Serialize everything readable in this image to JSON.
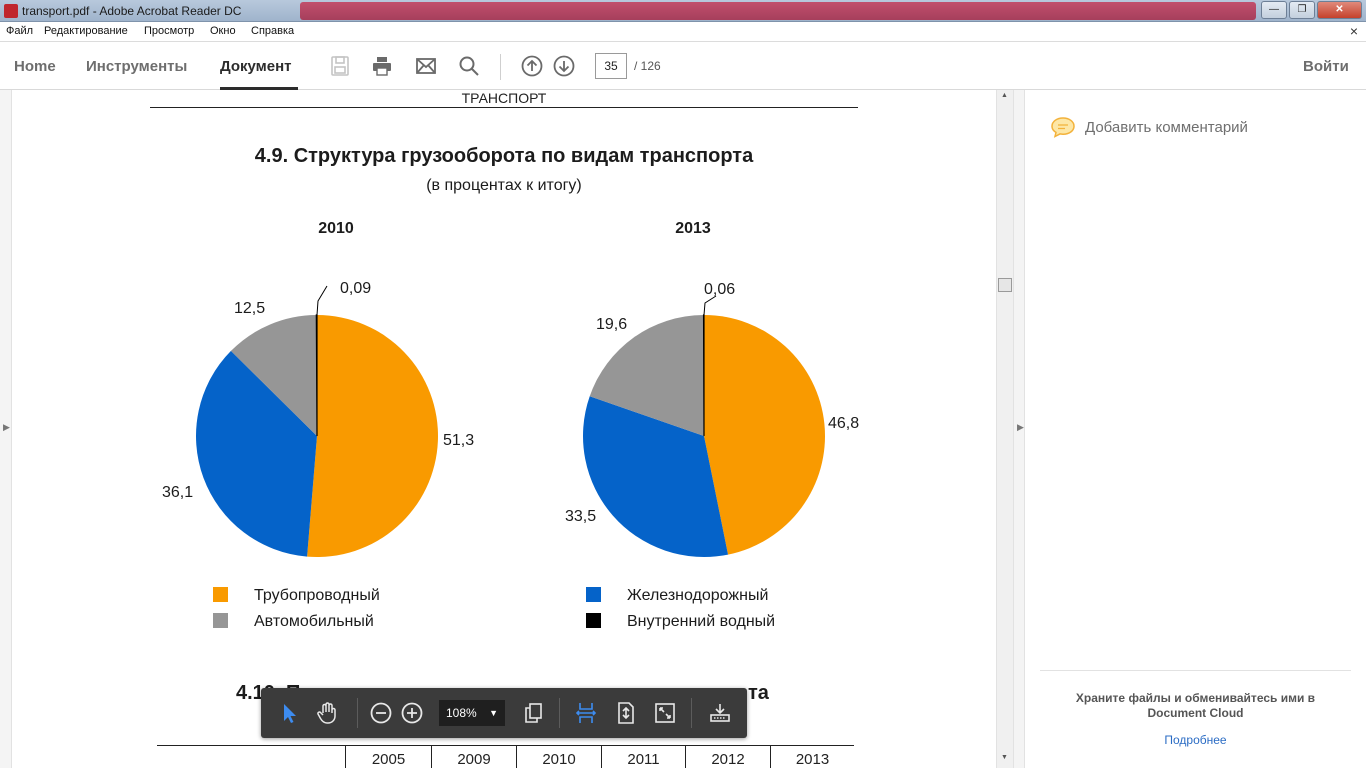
{
  "window": {
    "title": "transport.pdf - Adobe Acrobat Reader DC",
    "minimize": "—",
    "maximize": "❐",
    "close": "✕"
  },
  "menu": {
    "items": [
      "Файл",
      "Редактирование",
      "Просмотр",
      "Окно",
      "Справка"
    ],
    "close_glyph": "×"
  },
  "toolbar": {
    "tabs": [
      {
        "label": "Home",
        "active": false
      },
      {
        "label": "Инструменты",
        "active": false
      },
      {
        "label": "Документ",
        "active": true
      }
    ],
    "icons": [
      "save-icon",
      "print-icon",
      "email-icon",
      "search-icon",
      "page-up-icon",
      "page-down-icon"
    ],
    "page_current": "35",
    "page_total": "/ 126",
    "signin_label": "Войти"
  },
  "document": {
    "section_header": "ТРАНСПОРТ",
    "next_title_start": "4.10. П",
    "next_title_end": "та",
    "table_years": [
      "2005",
      "2009",
      "2010",
      "2011",
      "2012",
      "2013"
    ]
  },
  "chart_data": {
    "type": "pie",
    "title": "4.9. Структура грузооборота по видам транспорта",
    "subtitle": "(в процентах к итогу)",
    "legend": [
      {
        "name": "Трубопроводный",
        "color": "#f99a00"
      },
      {
        "name": "Железнодорожный",
        "color": "#0563c9"
      },
      {
        "name": "Автомобильный",
        "color": "#969696"
      },
      {
        "name": "Внутренний водный",
        "color": "#000000"
      }
    ],
    "charts": [
      {
        "year": "2010",
        "slices": [
          {
            "name": "Трубопроводный",
            "value": 51.3,
            "label": "51,3",
            "color": "#f99a00"
          },
          {
            "name": "Железнодорожный",
            "value": 36.1,
            "label": "36,1",
            "color": "#0563c9"
          },
          {
            "name": "Автомобильный",
            "value": 12.5,
            "label": "12,5",
            "color": "#969696"
          },
          {
            "name": "Внутренний водный",
            "value": 0.09,
            "label": "0,09",
            "color": "#000000"
          }
        ]
      },
      {
        "year": "2013",
        "slices": [
          {
            "name": "Трубопроводный",
            "value": 46.8,
            "label": "46,8",
            "color": "#f99a00"
          },
          {
            "name": "Железнодорожный",
            "value": 33.5,
            "label": "33,5",
            "color": "#0563c9"
          },
          {
            "name": "Автомобильный",
            "value": 19.6,
            "label": "19,6",
            "color": "#969696"
          },
          {
            "name": "Внутренний водный",
            "value": 0.06,
            "label": "0,06",
            "color": "#000000"
          }
        ]
      }
    ]
  },
  "floating_toolbar": {
    "zoom": "108%",
    "icons": [
      "select-arrow-icon",
      "hand-tool-icon",
      "zoom-out-icon",
      "zoom-in-icon",
      "page-copy-icon",
      "fit-width-icon",
      "fit-page-icon",
      "full-screen-icon",
      "read-mode-icon"
    ]
  },
  "right_pane": {
    "add_comment": "Добавить комментарий",
    "cloud_text": "Храните файлы и обменивайтесь ими в Document Cloud",
    "learn_more": "Подробнее"
  }
}
